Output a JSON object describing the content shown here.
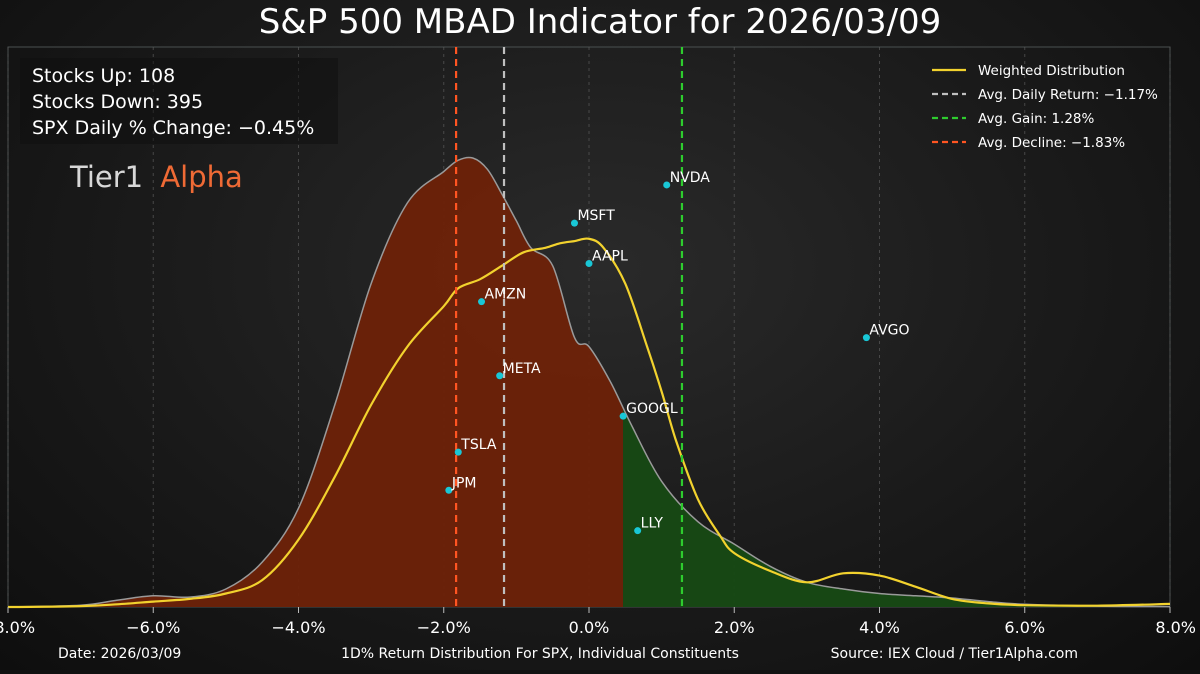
{
  "chart_data": {
    "type": "area",
    "title": "S&P 500 MBAD Indicator for 2026/03/09",
    "xlabel": "1D% Return Distribution For SPX, Individual Constituents",
    "xlim": [
      -8.0,
      8.0
    ],
    "x_ticks": [
      "−8.0%",
      "−6.0%",
      "−4.0%",
      "−2.0%",
      "0.0%",
      "2.0%",
      "4.0%",
      "6.0%",
      "8.0%"
    ],
    "x_tick_values": [
      -8,
      -6,
      -4,
      -2,
      0,
      2,
      4,
      6,
      8
    ],
    "ylim": [
      0,
      1.0
    ],
    "stats": {
      "stocks_up": "Stocks Up: 108",
      "stocks_down": "Stocks Down: 395",
      "spx_change": "SPX Daily % Change: −0.45%"
    },
    "brand": {
      "part1": "Tier1",
      "part2": "Alpha"
    },
    "footer": {
      "date": "Date: 2026/03/09",
      "source": "Source: IEX Cloud / Tier1Alpha.com"
    },
    "legend": [
      {
        "label": "Weighted Distribution",
        "color": "#f2d22e",
        "style": "solid"
      },
      {
        "label": "Avg. Daily Return: −1.17%",
        "color": "#bfbfbf",
        "style": "dashed"
      },
      {
        "label": "Avg. Gain: 1.28%",
        "color": "#2ecc2e",
        "style": "dashed"
      },
      {
        "label": "Avg. Decline: −1.83%",
        "color": "#ff5522",
        "style": "dashed"
      }
    ],
    "vlines": [
      {
        "name": "avg-daily-return",
        "x": -1.17,
        "color": "#bfbfbf"
      },
      {
        "name": "avg-gain",
        "x": 1.28,
        "color": "#2ecc2e"
      },
      {
        "name": "avg-decline",
        "x": -1.83,
        "color": "#ff5522"
      }
    ],
    "series": [
      {
        "name": "Distribution",
        "x": [
          -8.0,
          -7.0,
          -6.5,
          -6.0,
          -5.5,
          -5.0,
          -4.5,
          -4.0,
          -3.5,
          -3.0,
          -2.5,
          -2.0,
          -1.8,
          -1.6,
          -1.4,
          -1.2,
          -1.0,
          -0.8,
          -0.5,
          -0.2,
          0.0,
          0.3,
          0.6,
          1.0,
          1.5,
          2.0,
          2.5,
          3.0,
          3.5,
          4.0,
          4.5,
          5.0,
          5.5,
          6.0,
          7.0,
          8.0
        ],
        "y": [
          0.0,
          0.004,
          0.015,
          0.025,
          0.022,
          0.04,
          0.1,
          0.22,
          0.45,
          0.72,
          0.9,
          0.97,
          0.995,
          1.0,
          0.975,
          0.92,
          0.86,
          0.8,
          0.76,
          0.6,
          0.58,
          0.5,
          0.4,
          0.28,
          0.19,
          0.14,
          0.09,
          0.055,
          0.04,
          0.03,
          0.025,
          0.02,
          0.012,
          0.006,
          0.002,
          0.001
        ]
      },
      {
        "name": "Weighted Distribution",
        "x": [
          -8.0,
          -7.0,
          -6.5,
          -6.0,
          -5.5,
          -5.0,
          -4.5,
          -4.0,
          -3.5,
          -3.0,
          -2.5,
          -2.0,
          -1.8,
          -1.5,
          -1.2,
          -0.9,
          -0.6,
          -0.4,
          -0.2,
          0.0,
          0.2,
          0.5,
          0.8,
          1.0,
          1.2,
          1.5,
          1.8,
          2.0,
          2.5,
          3.0,
          3.5,
          4.0,
          4.5,
          5.0,
          5.5,
          6.0,
          7.0,
          8.0
        ],
        "y": [
          0.0,
          0.002,
          0.006,
          0.012,
          0.018,
          0.03,
          0.06,
          0.15,
          0.29,
          0.45,
          0.58,
          0.67,
          0.71,
          0.73,
          0.76,
          0.79,
          0.8,
          0.81,
          0.815,
          0.82,
          0.8,
          0.72,
          0.58,
          0.48,
          0.37,
          0.24,
          0.16,
          0.12,
          0.08,
          0.055,
          0.075,
          0.07,
          0.045,
          0.018,
          0.008,
          0.004,
          0.003,
          0.007
        ]
      }
    ],
    "labeled_points": [
      {
        "label": "NVDA",
        "x": 1.07,
        "y": 0.94
      },
      {
        "label": "MSFT",
        "x": -0.2,
        "y": 0.855
      },
      {
        "label": "AAPL",
        "x": 0.0,
        "y": 0.765
      },
      {
        "label": "AMZN",
        "x": -1.48,
        "y": 0.68
      },
      {
        "label": "AVGO",
        "x": 3.82,
        "y": 0.6
      },
      {
        "label": "META",
        "x": -1.23,
        "y": 0.515
      },
      {
        "label": "GOOGL",
        "x": 0.47,
        "y": 0.425
      },
      {
        "label": "TSLA",
        "x": -1.8,
        "y": 0.345
      },
      {
        "label": "JPM",
        "x": -1.93,
        "y": 0.26
      },
      {
        "label": "LLY",
        "x": 0.67,
        "y": 0.17
      }
    ]
  },
  "colors": {
    "decline_fill": "#6e2208",
    "gain_fill": "#174a14",
    "distribution_stroke": "#9a9a9a",
    "point": "#19c7d6",
    "brand_part1": "#d8d8d8",
    "brand_part2": "#ef6a35"
  }
}
